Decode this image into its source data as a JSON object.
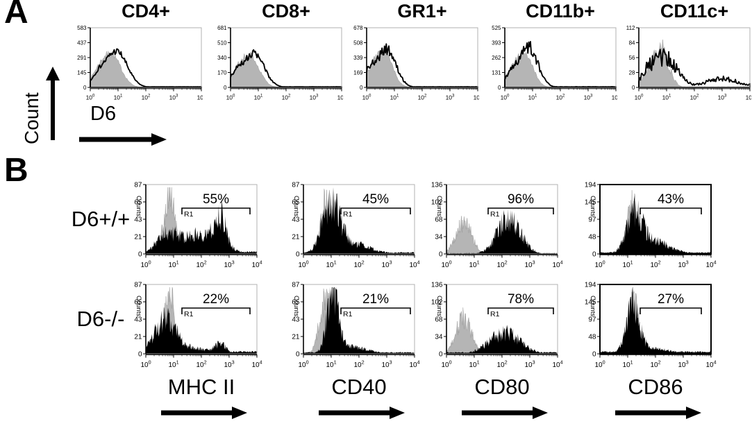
{
  "figure": {
    "panel_a": {
      "label": "A",
      "y_axis_label": "Count",
      "x_axis_label": "D6"
    },
    "panel_b": {
      "label": "B",
      "row_labels": [
        "D6+/+",
        "D6-/-"
      ],
      "col_labels": [
        "MHC II",
        "CD40",
        "CD80",
        "CD86"
      ],
      "y_axis_label": "Counts"
    },
    "colors": {
      "gray_fill": "#b5b5b5",
      "gray_stroke": "#8f8f8f",
      "black": "#000000",
      "frame_gray": "#b0b0b0",
      "axis_dark": "#4d4d4d"
    }
  },
  "chart_data": {
    "type": "histogram",
    "x_scale": "log10",
    "x_range": [
      1,
      10000
    ],
    "x_decades": [
      0,
      1,
      2,
      3,
      4
    ],
    "x_tick_labels": [
      "10^0",
      "10^1",
      "10^2",
      "10^3",
      "10^4"
    ],
    "panel_a": {
      "description": "Overlay histograms: gray filled control vs black outline D6 stain",
      "plots": [
        {
          "title": "CD4+",
          "yticks": [
            583,
            437,
            291,
            145,
            0
          ],
          "gray": {
            "comps": [
              [
                0.75,
                0.35,
                0.55
              ],
              [
                0.25,
                0.25,
                0.15
              ]
            ],
            "noise": 0.1,
            "floor": 0.008
          },
          "black": {
            "comps": [
              [
                0.95,
                0.38,
                0.6
              ],
              [
                0.3,
                0.25,
                0.18
              ]
            ],
            "noise": 0.1,
            "floor": 0.01
          }
        },
        {
          "title": "CD8+",
          "yticks": [
            681,
            510,
            340,
            170,
            0
          ],
          "gray": {
            "comps": [
              [
                0.7,
                0.33,
                0.52
              ],
              [
                0.2,
                0.25,
                0.18
              ]
            ],
            "noise": 0.1,
            "floor": 0.008
          },
          "black": {
            "comps": [
              [
                0.85,
                0.36,
                0.56
              ],
              [
                0.2,
                0.25,
                0.2
              ]
            ],
            "noise": 0.12,
            "floor": 0.01
          }
        },
        {
          "title": "GR1+",
          "yticks": [
            678,
            508,
            339,
            169,
            0
          ],
          "gray": {
            "comps": [
              [
                0.62,
                0.3,
                0.6
              ],
              [
                0.15,
                0.2,
                0.2
              ]
            ],
            "noise": 0.12,
            "floor": 0.008
          },
          "black": {
            "comps": [
              [
                0.72,
                0.33,
                0.64
              ],
              [
                0.1,
                0.2,
                0.25
              ]
            ],
            "noise": 0.14,
            "floor": 0.01
          }
        },
        {
          "title": "CD11b+",
          "yticks": [
            525,
            393,
            262,
            131,
            0
          ],
          "gray": {
            "comps": [
              [
                0.7,
                0.3,
                0.58
              ],
              [
                0.2,
                0.2,
                0.18
              ]
            ],
            "noise": 0.12,
            "floor": 0.008
          },
          "black": {
            "comps": [
              [
                0.85,
                0.33,
                0.68
              ],
              [
                0.2,
                0.2,
                0.2
              ]
            ],
            "noise": 0.16,
            "floor": 0.01
          }
        },
        {
          "title": "CD11c+",
          "yticks": [
            112,
            84,
            56,
            28,
            0
          ],
          "gray": {
            "comps": [
              [
                0.78,
                0.28,
                0.66
              ],
              [
                0.3,
                0.2,
                0.2
              ]
            ],
            "noise": 0.3,
            "floor": 0.01
          },
          "black": {
            "comps": [
              [
                0.95,
                0.42,
                0.5
              ],
              [
                0.3,
                0.25,
                0.2
              ],
              [
                3.0,
                0.55,
                0.15
              ]
            ],
            "noise": 0.32,
            "floor": 0.05
          }
        }
      ]
    },
    "panel_b": {
      "description": "Gray filled control vs black filled stain with R1 gate percentages",
      "rows": [
        {
          "label": "D6+/+",
          "plots": [
            {
              "marker": "MHC II",
              "percent": "55%",
              "gate_label": "R1",
              "gate_log_range": [
                1.3,
                3.75
              ],
              "yticks": [
                87,
                65,
                43,
                21,
                0
              ],
              "gray": {
                "comps": [
                  [
                    0.85,
                    0.2,
                    0.85
                  ]
                ],
                "noise": 0.32,
                "floor": 0.01
              },
              "black": {
                "comps": [
                  [
                    0.8,
                    0.4,
                    0.3
                  ],
                  [
                    1.9,
                    0.45,
                    0.2
                  ],
                  [
                    2.7,
                    0.2,
                    0.42
                  ],
                  [
                    2.4,
                    0.6,
                    0.12
                  ]
                ],
                "noise": 0.42,
                "floor": 0.03
              }
            },
            {
              "marker": "CD40",
              "percent": "45%",
              "gate_label": "R1",
              "gate_log_range": [
                1.35,
                3.85
              ],
              "yticks": [
                87,
                65,
                43,
                21,
                0
              ],
              "gray": {
                "comps": [
                  [
                    0.85,
                    0.2,
                    0.82
                  ]
                ],
                "noise": 0.32,
                "floor": 0.01
              },
              "black": {
                "comps": [
                  [
                    1.0,
                    0.3,
                    0.62
                  ],
                  [
                    1.6,
                    0.7,
                    0.16
                  ]
                ],
                "noise": 0.42,
                "floor": 0.02
              }
            },
            {
              "marker": "CD80",
              "percent": "96%",
              "gate_label": "R1",
              "gate_log_range": [
                1.5,
                3.85
              ],
              "yticks": [
                136,
                102,
                68,
                34,
                0
              ],
              "gray": {
                "comps": [
                  [
                    0.62,
                    0.28,
                    0.46
                  ]
                ],
                "noise": 0.32,
                "floor": 0.008
              },
              "black": {
                "comps": [
                  [
                    2.25,
                    0.42,
                    0.5
                  ]
                ],
                "noise": 0.4,
                "floor": 0.01
              }
            },
            {
              "marker": "CD86",
              "percent": "43%",
              "gate_label": null,
              "gate_log_range": [
                1.45,
                3.65
              ],
              "yticks": [
                194,
                145,
                97,
                48,
                0
              ],
              "frame": "black",
              "gray": {
                "comps": [
                  [
                    1.2,
                    0.22,
                    0.72
                  ]
                ],
                "noise": 0.32,
                "floor": 0.01
              },
              "black": {
                "comps": [
                  [
                    1.25,
                    0.28,
                    0.52
                  ],
                  [
                    1.9,
                    0.6,
                    0.18
                  ]
                ],
                "noise": 0.42,
                "floor": 0.02
              }
            }
          ]
        },
        {
          "label": "D6-/-",
          "plots": [
            {
              "marker": "MHC II",
              "percent": "22%",
              "gate_label": "R1",
              "gate_log_range": [
                1.3,
                3.75
              ],
              "yticks": [
                87,
                65,
                43,
                21,
                0
              ],
              "gray": {
                "comps": [
                  [
                    0.85,
                    0.2,
                    0.85
                  ]
                ],
                "noise": 0.32,
                "floor": 0.01
              },
              "black": {
                "comps": [
                  [
                    0.7,
                    0.4,
                    0.48
                  ],
                  [
                    1.8,
                    0.5,
                    0.07
                  ],
                  [
                    2.7,
                    0.2,
                    0.13
                  ]
                ],
                "noise": 0.42,
                "floor": 0.03
              }
            },
            {
              "marker": "CD40",
              "percent": "21%",
              "gate_label": "R1",
              "gate_log_range": [
                1.35,
                3.85
              ],
              "yticks": [
                87,
                65,
                43,
                21,
                0
              ],
              "gray": {
                "comps": [
                  [
                    0.8,
                    0.22,
                    0.78
                  ]
                ],
                "noise": 0.32,
                "floor": 0.01
              },
              "black": {
                "comps": [
                  [
                    1.05,
                    0.2,
                    0.88
                  ],
                  [
                    1.7,
                    0.6,
                    0.1
                  ]
                ],
                "noise": 0.4,
                "floor": 0.02
              }
            },
            {
              "marker": "CD80",
              "percent": "78%",
              "gate_label": "R1",
              "gate_log_range": [
                1.5,
                3.85
              ],
              "yticks": [
                136,
                102,
                68,
                34,
                0
              ],
              "gray": {
                "comps": [
                  [
                    0.62,
                    0.28,
                    0.52
                  ]
                ],
                "noise": 0.32,
                "floor": 0.008
              },
              "black": {
                "comps": [
                  [
                    2.1,
                    0.55,
                    0.3
                  ]
                ],
                "noise": 0.42,
                "floor": 0.02
              }
            },
            {
              "marker": "CD86",
              "percent": "27%",
              "gate_label": null,
              "gate_log_range": [
                1.45,
                3.65
              ],
              "yticks": [
                194,
                145,
                97,
                48,
                0
              ],
              "frame": "black",
              "gray": {
                "comps": [
                  [
                    1.2,
                    0.2,
                    0.76
                  ]
                ],
                "noise": 0.32,
                "floor": 0.01
              },
              "black": {
                "comps": [
                  [
                    1.18,
                    0.24,
                    0.68
                  ],
                  [
                    2.0,
                    0.6,
                    0.07
                  ]
                ],
                "noise": 0.42,
                "floor": 0.03
              }
            }
          ]
        }
      ]
    }
  }
}
